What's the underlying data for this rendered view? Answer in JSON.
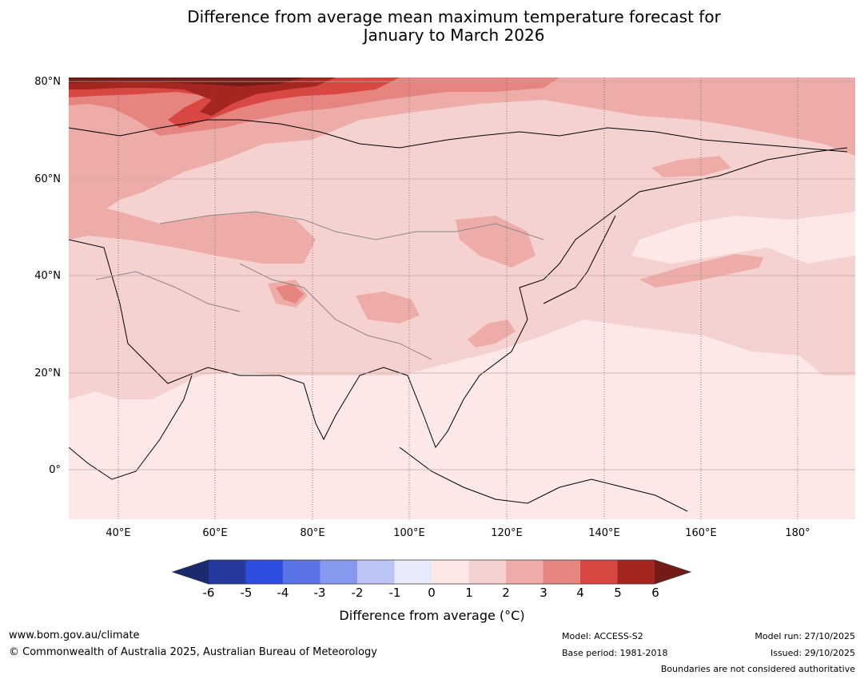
{
  "title": {
    "line1": "Difference from average mean maximum temperature forecast for",
    "line2": "January to March 2026"
  },
  "map": {
    "lat_labels": [
      "80°N",
      "60°N",
      "40°N",
      "20°N",
      "0°"
    ],
    "lon_labels": [
      "40°E",
      "60°E",
      "80°E",
      "100°E",
      "120°E",
      "140°E",
      "160°E",
      "180°"
    ],
    "lat_range": [
      -10,
      80
    ],
    "lon_range": [
      30,
      191
    ]
  },
  "colorbar": {
    "title": "Difference from average (°C)",
    "ticks": [
      "-6",
      "-5",
      "-4",
      "-3",
      "-2",
      "-1",
      "0",
      "1",
      "2",
      "3",
      "4",
      "5",
      "6"
    ],
    "colors": [
      "#263a9e",
      "#2f4ee0",
      "#5a74e6",
      "#8799ec",
      "#bcc6f4",
      "#e7eafb",
      "#fce8e6",
      "#f5d2cf",
      "#edaca8",
      "#e6847f",
      "#d84741",
      "#a5261f"
    ],
    "under_color": "#1b2a6e",
    "over_color": "#731b16"
  },
  "footer": {
    "website": "www.bom.gov.au/climate",
    "copyright": "© Commonwealth of Australia 2025, Australian Bureau of Meteorology",
    "model": "Model: ACCESS-S2",
    "base_period": "Base period: 1981-2018",
    "model_run": "Model run: 27/10/2025",
    "issued": "Issued: 29/10/2025",
    "boundaries": "Boundaries are not considered authoritative"
  }
}
